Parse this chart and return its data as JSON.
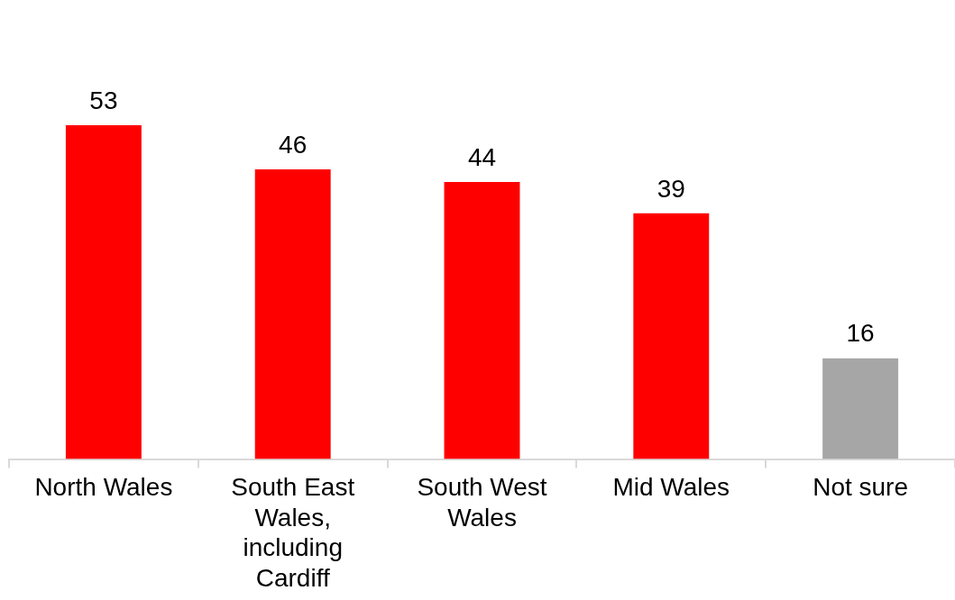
{
  "chart_data": {
    "type": "bar",
    "categories": [
      "North Wales",
      "South East Wales, including Cardiff",
      "South West Wales",
      "Mid Wales",
      "Not sure"
    ],
    "values": [
      53,
      46,
      44,
      39,
      16
    ],
    "colors": [
      "#ff0000",
      "#ff0000",
      "#ff0000",
      "#ff0000",
      "#a6a6a6"
    ],
    "tick_labels": "x",
    "grid": false,
    "legend": false,
    "data_labels": true
  }
}
